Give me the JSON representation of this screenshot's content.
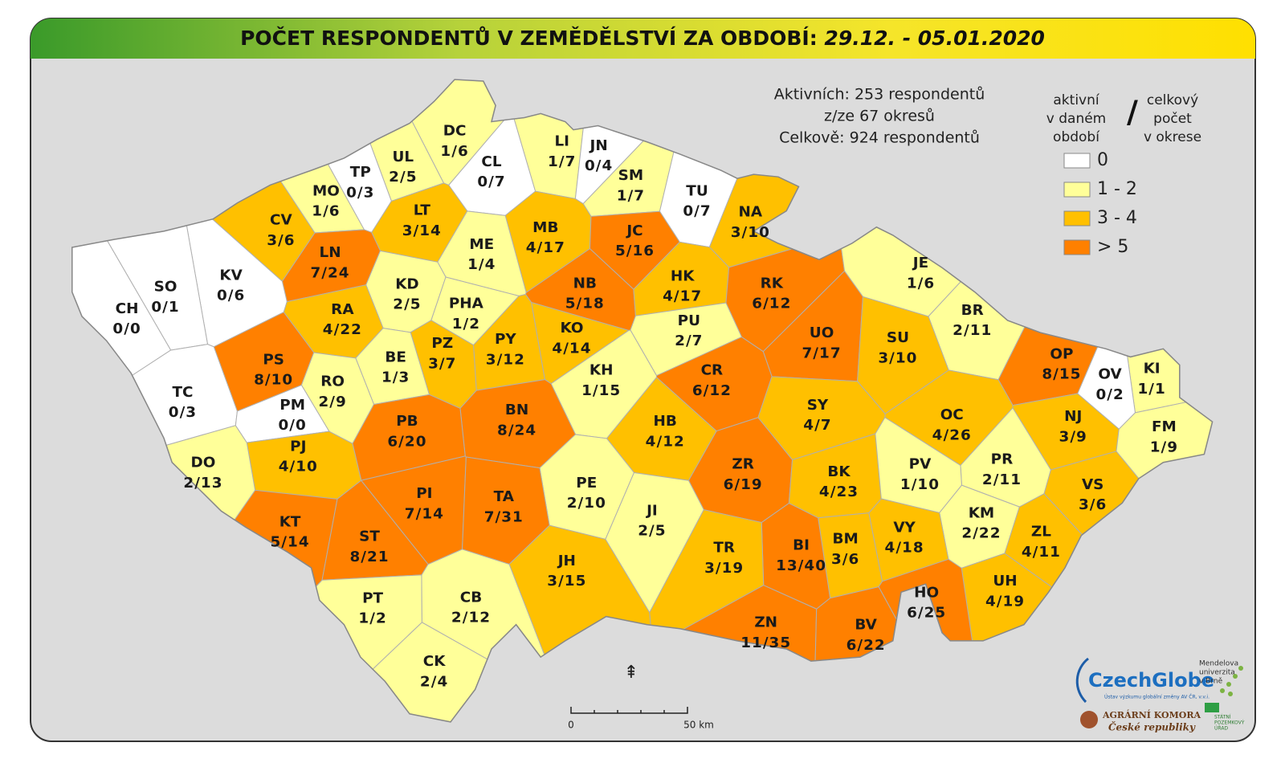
{
  "header": {
    "title": "POČET RESPONDENTŮ V ZEMĚDĚLSTVÍ ZA OBDOBÍ:",
    "period": "29.12. - 05.01.2020"
  },
  "summary": [
    "Aktivních: 253 respondentů",
    "z/ze 67 okresů",
    "Celkově: 924 respondentů"
  ],
  "legend": {
    "left_title": [
      "aktivní",
      "v daném",
      "období"
    ],
    "separator": "/",
    "right_title": [
      "celkový",
      "počet",
      "v okrese"
    ],
    "items": [
      {
        "label": "0",
        "color": "#ffffff"
      },
      {
        "label": "1 - 2",
        "color": "#ffff99"
      },
      {
        "label": "3 - 4",
        "color": "#ffc000"
      },
      {
        "label": "> 5",
        "color": "#ff8000"
      }
    ]
  },
  "scale": {
    "start": "0",
    "end": "50 km"
  },
  "logos": {
    "czechglobe": "CzechGlobe",
    "czechglobe_sub": "Ústav výzkumu globální změny AV ČR, v.v.i.",
    "mendelu": [
      "Mendelova",
      "univerzita",
      "v Brně"
    ],
    "agrarni": [
      "AGRÁRNÍ KOMORA",
      "České republiky"
    ],
    "spu": [
      "STÁTNÍ",
      "POZEMKOVÝ",
      "ÚŘAD"
    ]
  },
  "districts": [
    {
      "code": "DC",
      "label": "1/6",
      "color": "#ffff99"
    },
    {
      "code": "UL",
      "label": "2/5",
      "color": "#ffff99"
    },
    {
      "code": "TP",
      "label": "0/3",
      "color": "#ffffff"
    },
    {
      "code": "CL",
      "label": "0/7",
      "color": "#ffffff"
    },
    {
      "code": "LI",
      "label": "1/7",
      "color": "#ffff99"
    },
    {
      "code": "JN",
      "label": "0/4",
      "color": "#ffffff"
    },
    {
      "code": "SM",
      "label": "1/7",
      "color": "#ffff99"
    },
    {
      "code": "TU",
      "label": "0/7",
      "color": "#ffffff"
    },
    {
      "code": "NA",
      "label": "3/10",
      "color": "#ffc000"
    },
    {
      "code": "MO",
      "label": "1/6",
      "color": "#ffff99"
    },
    {
      "code": "CV",
      "label": "3/6",
      "color": "#ffc000"
    },
    {
      "code": "LT",
      "label": "3/14",
      "color": "#ffc000"
    },
    {
      "code": "MB",
      "label": "4/17",
      "color": "#ffc000"
    },
    {
      "code": "JC",
      "label": "5/16",
      "color": "#ff8000"
    },
    {
      "code": "ME",
      "label": "1/4",
      "color": "#ffff99"
    },
    {
      "code": "LN",
      "label": "7/24",
      "color": "#ff8000"
    },
    {
      "code": "KV",
      "label": "0/6",
      "color": "#ffffff"
    },
    {
      "code": "SO",
      "label": "0/1",
      "color": "#ffffff"
    },
    {
      "code": "CH",
      "label": "0/0",
      "color": "#ffffff"
    },
    {
      "code": "KD",
      "label": "2/5",
      "color": "#ffff99"
    },
    {
      "code": "NB",
      "label": "5/18",
      "color": "#ff8000"
    },
    {
      "code": "HK",
      "label": "4/17",
      "color": "#ffc000"
    },
    {
      "code": "RK",
      "label": "6/12",
      "color": "#ff8000"
    },
    {
      "code": "JE",
      "label": "1/6",
      "color": "#ffff99"
    },
    {
      "code": "PHA",
      "label": "1/2",
      "color": "#ffff99"
    },
    {
      "code": "RA",
      "label": "4/22",
      "color": "#ffc000"
    },
    {
      "code": "BR",
      "label": "2/11",
      "color": "#ffff99"
    },
    {
      "code": "PU",
      "label": "2/7",
      "color": "#ffff99"
    },
    {
      "code": "UO",
      "label": "7/17",
      "color": "#ff8000"
    },
    {
      "code": "SU",
      "label": "3/10",
      "color": "#ffc000"
    },
    {
      "code": "KO",
      "label": "4/14",
      "color": "#ffc000"
    },
    {
      "code": "PY",
      "label": "3/12",
      "color": "#ffc000"
    },
    {
      "code": "PZ",
      "label": "3/7",
      "color": "#ffc000"
    },
    {
      "code": "BE",
      "label": "1/3",
      "color": "#ffff99"
    },
    {
      "code": "PS",
      "label": "8/10",
      "color": "#ff8000"
    },
    {
      "code": "OP",
      "label": "8/15",
      "color": "#ff8000"
    },
    {
      "code": "KI",
      "label": "1/1",
      "color": "#ffff99"
    },
    {
      "code": "KH",
      "label": "1/15",
      "color": "#ffff99"
    },
    {
      "code": "CR",
      "label": "6/12",
      "color": "#ff8000"
    },
    {
      "code": "OV",
      "label": "0/2",
      "color": "#ffffff"
    },
    {
      "code": "RO",
      "label": "2/9",
      "color": "#ffff99"
    },
    {
      "code": "TC",
      "label": "0/3",
      "color": "#ffffff"
    },
    {
      "code": "SY",
      "label": "4/7",
      "color": "#ffc000"
    },
    {
      "code": "BN",
      "label": "8/24",
      "color": "#ff8000"
    },
    {
      "code": "PM",
      "label": "0/0",
      "color": "#ffffff"
    },
    {
      "code": "OC",
      "label": "4/26",
      "color": "#ffc000"
    },
    {
      "code": "NJ",
      "label": "3/9",
      "color": "#ffc000"
    },
    {
      "code": "PB",
      "label": "6/20",
      "color": "#ff8000"
    },
    {
      "code": "HB",
      "label": "4/12",
      "color": "#ffc000"
    },
    {
      "code": "FM",
      "label": "1/9",
      "color": "#ffff99"
    },
    {
      "code": "PJ",
      "label": "4/10",
      "color": "#ffc000"
    },
    {
      "code": "DO",
      "label": "2/13",
      "color": "#ffff99"
    },
    {
      "code": "ZR",
      "label": "6/19",
      "color": "#ff8000"
    },
    {
      "code": "PR",
      "label": "2/11",
      "color": "#ffff99"
    },
    {
      "code": "BK",
      "label": "4/23",
      "color": "#ffc000"
    },
    {
      "code": "PV",
      "label": "1/10",
      "color": "#ffff99"
    },
    {
      "code": "PE",
      "label": "2/10",
      "color": "#ffff99"
    },
    {
      "code": "VS",
      "label": "3/6",
      "color": "#ffc000"
    },
    {
      "code": "PI",
      "label": "7/14",
      "color": "#ff8000"
    },
    {
      "code": "TA",
      "label": "7/31",
      "color": "#ff8000"
    },
    {
      "code": "JI",
      "label": "2/5",
      "color": "#ffff99"
    },
    {
      "code": "KM",
      "label": "2/22",
      "color": "#ffff99"
    },
    {
      "code": "KT",
      "label": "5/14",
      "color": "#ff8000"
    },
    {
      "code": "ZL",
      "label": "4/11",
      "color": "#ffc000"
    },
    {
      "code": "BM",
      "label": "3/6",
      "color": "#ffc000"
    },
    {
      "code": "ST",
      "label": "8/21",
      "color": "#ff8000"
    },
    {
      "code": "BI",
      "label": "13/40",
      "color": "#ff8000"
    },
    {
      "code": "VY",
      "label": "4/18",
      "color": "#ffc000"
    },
    {
      "code": "TR",
      "label": "3/19",
      "color": "#ffc000"
    },
    {
      "code": "JH",
      "label": "3/15",
      "color": "#ffc000"
    },
    {
      "code": "UH",
      "label": "4/19",
      "color": "#ffc000"
    },
    {
      "code": "PT",
      "label": "1/2",
      "color": "#ffff99"
    },
    {
      "code": "CB",
      "label": "2/12",
      "color": "#ffff99"
    },
    {
      "code": "HO",
      "label": "6/25",
      "color": "#ff8000"
    },
    {
      "code": "ZN",
      "label": "11/35",
      "color": "#ff8000"
    },
    {
      "code": "BV",
      "label": "6/22",
      "color": "#ff8000"
    },
    {
      "code": "CK",
      "label": "2/4",
      "color": "#ffff99"
    }
  ]
}
